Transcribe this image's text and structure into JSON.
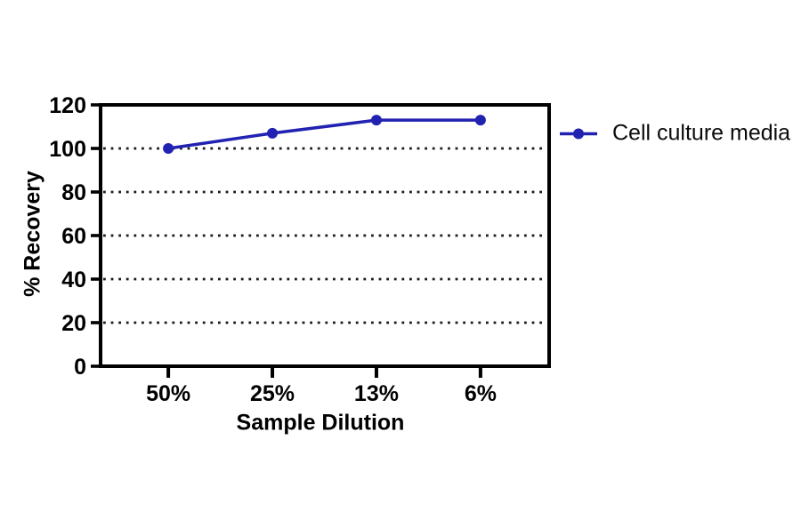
{
  "chart_data": {
    "type": "line",
    "title": "",
    "categories": [
      "50%",
      "25%",
      "13%",
      "6%"
    ],
    "series": [
      {
        "name": "Cell culture media",
        "values": [
          100,
          107,
          113,
          113
        ],
        "color": "#2222b2",
        "marker": "circle"
      }
    ],
    "xlabel": "Sample Dilution",
    "ylabel": "% Recovery",
    "ylim": [
      0,
      120
    ],
    "yticks": [
      0,
      20,
      40,
      60,
      80,
      100,
      120
    ],
    "y_tick_labels": [
      "0",
      "20",
      "40",
      "60",
      "80",
      "100",
      "120"
    ],
    "gridlines": {
      "horizontal_dotted_at": [
        20,
        40,
        60,
        80,
        100
      ]
    },
    "legend_position": "right-top",
    "frame": "full-box"
  },
  "axes": {
    "x_label": "Sample Dilution",
    "y_label": "% Recovery"
  },
  "legend": {
    "label": "Cell culture media"
  },
  "colors": {
    "series_blue": "#2222b2",
    "axis_black": "#000000",
    "grid_dot_black": "#1a1a1a",
    "background_white": "#ffffff"
  }
}
